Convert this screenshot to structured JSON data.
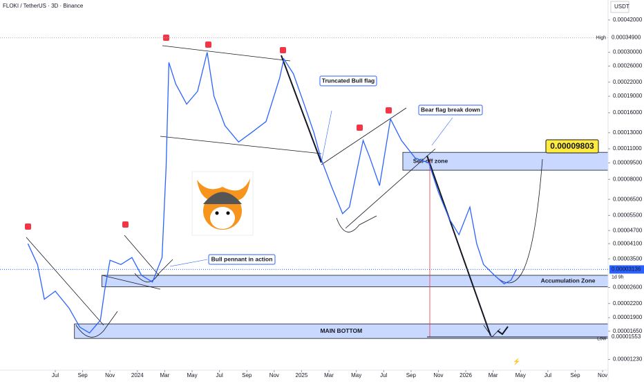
{
  "chart_data": {
    "type": "line",
    "title": "FLOKI / TetherUS · 3D · Binance",
    "currency": "USDT",
    "log_scale": true,
    "color": "#2962ff",
    "x": [
      -2.0,
      -1.3,
      -0.8,
      0,
      1.0,
      1.8,
      2.5,
      3.3,
      3.6,
      4.0,
      4.8,
      5.6,
      6.3,
      7.1,
      7.8,
      8.1,
      8.3,
      8.8,
      9.6,
      10.4,
      11.1,
      11.6,
      12.4,
      13.4,
      14.4,
      15.4,
      16.4,
      16.7,
      17.4,
      18.2,
      18.9,
      19.4,
      20.2,
      21.0,
      21.5,
      22.0,
      22.5,
      23.0,
      23.7,
      24.5,
      25.3,
      26.3,
      27.3,
      28.0,
      28.8,
      29.5,
      30.3,
      30.8,
      31.3,
      32.1,
      32.8,
      33.3,
      33.7
    ],
    "values": [
      4.1e-05,
      3.3e-05,
      2.3e-05,
      2.5e-05,
      2.1e-05,
      1.72e-05,
      1.62e-05,
      1.85e-05,
      2.5e-05,
      3.45e-05,
      3.3e-05,
      3.55e-05,
      2.95e-05,
      2.75e-05,
      3.55e-05,
      9.1e-05,
      0.00027,
      0.000216,
      0.000175,
      0.0002,
      0.0003,
      0.00019,
      0.00014,
      0.000118,
      0.000131,
      0.000146,
      0.00023,
      0.00028,
      0.00024,
      0.000174,
      0.00013,
      0.0001,
      7.4e-05,
      5.6e-05,
      6e-05,
      8.5e-05,
      0.00012,
      0.0001,
      7.5e-05,
      0.00015,
      0.00012,
      0.0001,
      9.5e-05,
      7e-05,
      5.3e-05,
      4.5e-05,
      6e-05,
      4.1e-05,
      3.3e-05,
      2.95e-05,
      2.7e-05,
      2.8e-05,
      3.136e-05
    ],
    "xlim": [
      -4.04,
      40.4
    ],
    "xticks": [
      {
        "value": 0,
        "label": "Jul"
      },
      {
        "value": 2,
        "label": "Sep"
      },
      {
        "value": 4,
        "label": "Nov"
      },
      {
        "value": 6,
        "label": "2024"
      },
      {
        "value": 8,
        "label": "Mar"
      },
      {
        "value": 10,
        "label": "May"
      },
      {
        "value": 12,
        "label": "Jul"
      },
      {
        "value": 14,
        "label": "Sep"
      },
      {
        "value": 16,
        "label": "Nov"
      },
      {
        "value": 18,
        "label": "2025"
      },
      {
        "value": 20,
        "label": "Mar"
      },
      {
        "value": 22,
        "label": "May"
      },
      {
        "value": 24,
        "label": "Jul"
      },
      {
        "value": 26,
        "label": "Sep"
      },
      {
        "value": 28,
        "label": "Nov"
      },
      {
        "value": 30,
        "label": "2026"
      },
      {
        "value": 32,
        "label": "Mar"
      },
      {
        "value": 34,
        "label": "May"
      },
      {
        "value": 36,
        "label": "Jul"
      },
      {
        "value": 38,
        "label": "Sep"
      },
      {
        "value": 40,
        "label": "Nov"
      }
    ],
    "ylim": [
      1.1e-05,
      0.000517
    ],
    "yticks": [
      {
        "value": 0.00042,
        "label": "0.00042000"
      },
      {
        "value": 0.0003,
        "label": "0.00030000"
      },
      {
        "value": 0.00026,
        "label": "0.00026000"
      },
      {
        "value": 0.00022,
        "label": "0.00022000"
      },
      {
        "value": 0.00019,
        "label": "0.00019000"
      },
      {
        "value": 0.00016,
        "label": "0.00016000"
      },
      {
        "value": 0.00013,
        "label": "0.00013000"
      },
      {
        "value": 0.00011,
        "label": "0.00011000"
      },
      {
        "value": 9.5e-05,
        "label": "0.00009500"
      },
      {
        "value": 8e-05,
        "label": "0.00008000"
      },
      {
        "value": 6.5e-05,
        "label": "0.00006500"
      },
      {
        "value": 5.5e-05,
        "label": "0.00005500"
      },
      {
        "value": 4.7e-05,
        "label": "0.00004700"
      },
      {
        "value": 4.1e-05,
        "label": "0.00004100"
      },
      {
        "value": 3.5e-05,
        "label": "0.00003500"
      },
      {
        "value": 2.6e-05,
        "label": "0.00002600"
      },
      {
        "value": 2.2e-05,
        "label": "0.00002200"
      },
      {
        "value": 1.9e-05,
        "label": "0.00001900"
      },
      {
        "value": 1.65e-05,
        "label": "0.00001650"
      },
      {
        "value": 1.23e-05,
        "label": "0.00001230"
      }
    ],
    "high": {
      "value": 0.000349,
      "label": "0.00034900",
      "text": "High"
    },
    "low": {
      "value": 1.524e-05,
      "label": "0.00001524",
      "text": "Low"
    },
    "last": {
      "value": 3.136e-05,
      "label": "0.00003136",
      "countdown": "1d 9h"
    },
    "level": {
      "value": 1.553e-05,
      "label": "0.00001553"
    },
    "target": {
      "value": 9.803e-05,
      "label": "0.00009803"
    },
    "zones": [
      {
        "label": "Sell-off zone",
        "range": [
          8.8e-05,
          0.000106
        ],
        "x_from": 25.4
      },
      {
        "label": "Accumulation Zone",
        "range": [
          2.62e-05,
          2.95e-05
        ],
        "x_from": 3.4
      },
      {
        "label": "MAIN BOTTOM",
        "range": [
          1.53e-05,
          1.78e-05
        ],
        "x_from": 1.4
      }
    ],
    "annotations": [
      "Truncated Bull flag",
      "Bear flag break down",
      "Bull pennant in action"
    ]
  }
}
